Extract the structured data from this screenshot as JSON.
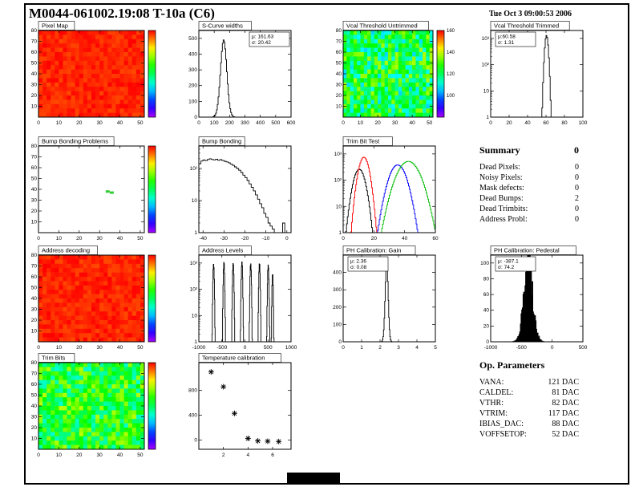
{
  "page": {
    "title": "M0044-061002.19:08 T-10a (C6)",
    "timestamp": "Tue Oct  3 09:00:53 2006"
  },
  "summary": {
    "heading": "Summary",
    "grade": "0",
    "rows": [
      {
        "label": "Dead Pixels:",
        "value": "0"
      },
      {
        "label": "Noisy Pixels:",
        "value": "0"
      },
      {
        "label": "Mask defects:",
        "value": "0"
      },
      {
        "label": "Dead Bumps:",
        "value": "2"
      },
      {
        "label": "Dead Trimbits:",
        "value": "0"
      },
      {
        "label": "Address Probl:",
        "value": "0"
      }
    ]
  },
  "op_parameters": {
    "heading": "Op. Parameters",
    "rows": [
      {
        "label": "VANA:",
        "value": "121 DAC"
      },
      {
        "label": "CALDEL:",
        "value": "81 DAC"
      },
      {
        "label": "VTHR:",
        "value": "82 DAC"
      },
      {
        "label": "VTRIM:",
        "value": "117 DAC"
      },
      {
        "label": "IBIAS_DAC:",
        "value": "88 DAC"
      },
      {
        "label": "VOFFSETOP:",
        "value": "52 DAC"
      }
    ]
  },
  "chart_data": [
    {
      "id": "pixel-map",
      "type": "heatmap",
      "title": "Pixel Map",
      "x": {
        "min": 0,
        "max": 52,
        "ticks": [
          0,
          10,
          20,
          30,
          40,
          50
        ]
      },
      "y": {
        "min": 0,
        "max": 80,
        "ticks": [
          10,
          20,
          30,
          40,
          50,
          60,
          70,
          80
        ]
      },
      "z": {
        "base": 0.97,
        "noise": 0.03
      },
      "colorbar": true,
      "seed": 7
    },
    {
      "id": "scurve-widths",
      "type": "histogram",
      "title": "S-Curve widths",
      "x": {
        "min": 0,
        "max": 600,
        "ticks": [
          0,
          100,
          200,
          300,
          400,
          500,
          600
        ]
      },
      "y": {
        "min": 0,
        "max": 550,
        "ticks": [
          0,
          100,
          200,
          300,
          400,
          500
        ]
      },
      "peaks": [
        {
          "mean": 161.63,
          "sigma": 20.42,
          "amp": 490
        }
      ],
      "stats": {
        "lines": [
          "μ: 161.63",
          "σ: 20.42"
        ],
        "pos": "tr"
      }
    },
    {
      "id": "vcal-untrimmed",
      "type": "heatmap",
      "title": "Vcal Threshold Untrimmed",
      "x": {
        "min": 0,
        "max": 52,
        "ticks": [
          0,
          10,
          20,
          30,
          40,
          50
        ]
      },
      "y": {
        "min": 0,
        "max": 80,
        "ticks": [
          10,
          20,
          30,
          40,
          50,
          60,
          70,
          80
        ]
      },
      "z": {
        "base": 0.52,
        "noise": 0.2,
        "min": 80,
        "max": 160,
        "labels": [
          100,
          120,
          140,
          160
        ]
      },
      "colorbar": true,
      "seed": 13
    },
    {
      "id": "vcal-trimmed",
      "type": "histogram",
      "title": "Vcal Threshold Trimmed",
      "x": {
        "min": 0,
        "max": 100,
        "ticks": [
          0,
          20,
          40,
          60,
          80,
          100
        ]
      },
      "y": {
        "log": true,
        "min": 1,
        "max": 2000,
        "ticks": [
          {
            "v": 1,
            "label": "1"
          },
          {
            "v": 10,
            "label": "10"
          },
          {
            "v": 100,
            "label": "10²"
          },
          {
            "v": 1000,
            "label": "10³"
          }
        ]
      },
      "peaks": [
        {
          "mean": 60.58,
          "sigma": 1.31,
          "amp": 1300
        }
      ],
      "stats": {
        "lines": [
          "μ:60.58",
          "σ: 1.31"
        ],
        "pos": "tl"
      }
    },
    {
      "id": "bump-problems",
      "type": "heatmap",
      "title": "Bump Bonding Problems",
      "x": {
        "min": 0,
        "max": 52,
        "ticks": [
          0,
          10,
          20,
          30,
          40,
          50
        ]
      },
      "y": {
        "min": 0,
        "max": 80,
        "ticks": [
          10,
          20,
          30,
          40,
          50,
          60,
          70,
          80
        ]
      },
      "empty": true,
      "cells": [
        {
          "x": 34,
          "y": 38
        },
        {
          "x": 36,
          "y": 37
        }
      ],
      "cell_color": "#33cc33",
      "colorbar": true,
      "seed": 3
    },
    {
      "id": "bump-bonding",
      "type": "histogram",
      "title": "Bump Bonding",
      "x": {
        "min": -42,
        "max": 2,
        "ticks": [
          -40,
          -30,
          -20,
          -10,
          0
        ]
      },
      "y": {
        "log": true,
        "min": 1,
        "max": 500,
        "ticks": [
          {
            "v": 1,
            "label": "1"
          },
          {
            "v": 10,
            "label": "10"
          },
          {
            "v": 100,
            "label": "10²"
          }
        ]
      },
      "bins": [
        140,
        170,
        185,
        175,
        190,
        200,
        190,
        185,
        195,
        180,
        188,
        176,
        168,
        160,
        150,
        138,
        125,
        112,
        100,
        88,
        75,
        62,
        52,
        42,
        33,
        26,
        20,
        15,
        11,
        8,
        6,
        4,
        3,
        2,
        1.6,
        1.3,
        0,
        0,
        0,
        0,
        2,
        0,
        0,
        0
      ]
    },
    {
      "id": "trim-bit-test",
      "type": "histogram",
      "title": "Trim Bit Test",
      "x": {
        "min": 0,
        "max": 60,
        "ticks": [
          0,
          20,
          40,
          60
        ]
      },
      "y": {
        "log": true,
        "min": 1,
        "max": 2000,
        "ticks": [
          {
            "v": 1,
            "label": "1"
          },
          {
            "v": 10,
            "label": "10"
          },
          {
            "v": 100,
            "label": "10²"
          },
          {
            "v": 1000,
            "label": "10³"
          }
        ]
      },
      "series": [
        {
          "color": "#000000",
          "mean": 10.5,
          "sigma": 2.6,
          "amp": 260
        },
        {
          "color": "#ff0000",
          "mean": 13.5,
          "sigma": 2.3,
          "amp": 750
        },
        {
          "color": "#0000ff",
          "mean": 35.5,
          "sigma": 3.8,
          "amp": 380
        },
        {
          "color": "#00bb00",
          "mean": 42.5,
          "sigma": 5.0,
          "amp": 520
        }
      ]
    },
    {
      "id": "address-decoding",
      "type": "heatmap",
      "title": "Address decoding",
      "x": {
        "min": 0,
        "max": 52,
        "ticks": [
          0,
          10,
          20,
          30,
          40,
          50
        ]
      },
      "y": {
        "min": 0,
        "max": 80,
        "ticks": [
          10,
          20,
          30,
          40,
          50,
          60,
          70,
          80
        ]
      },
      "z": {
        "base": 0.97,
        "noise": 0.03
      },
      "colorbar": true,
      "seed": 21
    },
    {
      "id": "address-levels",
      "type": "histogram",
      "title": "Address Levels",
      "x": {
        "min": -1000,
        "max": 1000,
        "ticks": [
          -1000,
          -500,
          0,
          500,
          1000
        ]
      },
      "y": {
        "log": true,
        "min": 1,
        "max": 2000,
        "ticks": [
          {
            "v": 1,
            "label": "1"
          },
          {
            "v": 10,
            "label": "10"
          },
          {
            "v": 100,
            "label": "10²"
          },
          {
            "v": 1000,
            "label": "10³"
          }
        ]
      },
      "peaks": [
        {
          "mean": -680,
          "sigma": 9,
          "amp": 900
        },
        {
          "mean": -455,
          "sigma": 9,
          "amp": 1100
        },
        {
          "mean": -255,
          "sigma": 9,
          "amp": 1000
        },
        {
          "mean": -65,
          "sigma": 9,
          "amp": 1100
        },
        {
          "mean": 125,
          "sigma": 9,
          "amp": 950
        },
        {
          "mean": 315,
          "sigma": 9,
          "amp": 1000
        },
        {
          "mean": 505,
          "sigma": 9,
          "amp": 850
        },
        {
          "mean": 600,
          "sigma": 8,
          "amp": 400
        }
      ],
      "nbins": 260
    },
    {
      "id": "ph-gain",
      "type": "histogram",
      "title": "PH Calibration: Gain",
      "x": {
        "min": 0,
        "max": 5,
        "ticks": [
          0,
          1,
          2,
          3,
          4,
          5
        ]
      },
      "y": {
        "min": 0,
        "max": 500,
        "ticks": [
          0,
          100,
          200,
          300,
          400
        ]
      },
      "peaks": [
        {
          "mean": 2.36,
          "sigma": 0.08,
          "amp": 470
        }
      ],
      "nbins": 160,
      "stats": {
        "lines": [
          "μ: 2.36",
          "σ: 0.08"
        ],
        "pos": "tl"
      }
    },
    {
      "id": "ph-pedestal",
      "type": "histogram",
      "title": "PH Calibration: Pedestal",
      "x": {
        "min": -1000,
        "max": 500,
        "ticks": [
          -1000,
          -500,
          0,
          500
        ]
      },
      "y": {
        "min": 0,
        "max": 110,
        "ticks": [
          0,
          20,
          40,
          60,
          80,
          100
        ]
      },
      "peaks": [
        {
          "mean": -387.1,
          "sigma": 74.2,
          "amp": 96
        }
      ],
      "fill": "#000000",
      "jitter": 0.35,
      "nbins": 140,
      "stats": {
        "lines": [
          "μ: -387.1",
          "σ: 74.2"
        ],
        "pos": "tl"
      }
    },
    {
      "id": "trim-bits",
      "type": "heatmap",
      "title": "Trim Bits",
      "x": {
        "min": 0,
        "max": 52,
        "ticks": [
          0,
          10,
          20,
          30,
          40,
          50
        ]
      },
      "y": {
        "min": 0,
        "max": 80,
        "ticks": [
          10,
          20,
          30,
          40,
          50,
          60,
          70,
          80
        ]
      },
      "z": {
        "base": 0.56,
        "noise": 0.17
      },
      "colorbar": true,
      "seed": 29
    },
    {
      "id": "temp-calibration",
      "type": "scatter",
      "title": "Temperature calibration",
      "x": {
        "min": 0,
        "max": 7.5,
        "ticks": [
          2,
          4,
          6
        ]
      },
      "y": {
        "min": -150,
        "max": 1250,
        "ticks": [
          0,
          400,
          800
        ]
      },
      "points": [
        [
          1,
          1100
        ],
        [
          2,
          860
        ],
        [
          2.9,
          430
        ],
        [
          4,
          25
        ],
        [
          4.8,
          -15
        ],
        [
          5.6,
          -20
        ],
        [
          6.5,
          -25
        ]
      ]
    }
  ]
}
